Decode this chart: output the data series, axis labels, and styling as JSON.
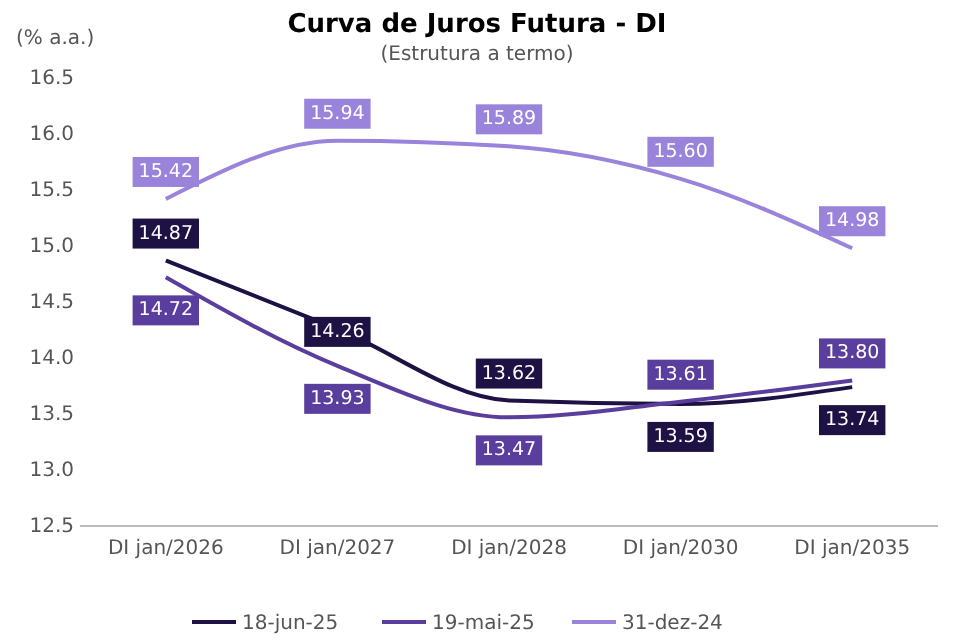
{
  "chart_data": {
    "type": "line",
    "title": "Curva de Juros Futura - DI",
    "subtitle": "(Estrutura a termo)",
    "ylabel": "(% a.a.)",
    "categories": [
      "DI jan/2026",
      "DI jan/2027",
      "DI jan/2028",
      "DI jan/2030",
      "DI jan/2035"
    ],
    "series": [
      {
        "name": "18-jun-25",
        "color": "#1e1245",
        "values": [
          14.87,
          14.26,
          13.62,
          13.59,
          13.74
        ],
        "value_labels": [
          "14.87",
          "14.26",
          "13.62",
          "13.59",
          "13.74"
        ]
      },
      {
        "name": "19-mai-25",
        "color": "#5a3e9e",
        "values": [
          14.72,
          13.93,
          13.47,
          13.61,
          13.8
        ],
        "value_labels": [
          "14.72",
          "13.93",
          "13.47",
          "13.61",
          "13.80"
        ]
      },
      {
        "name": "31-dez-24",
        "color": "#9a84db",
        "values": [
          15.42,
          15.94,
          15.89,
          15.6,
          14.98
        ],
        "value_labels": [
          "15.42",
          "15.94",
          "15.89",
          "15.60",
          "14.98"
        ]
      }
    ],
    "ylim": [
      12.5,
      16.5
    ],
    "yticks": [
      {
        "value": 12.5,
        "label": "12.5"
      },
      {
        "value": 13,
        "label": "13.0"
      },
      {
        "value": 13.5,
        "label": "13.5"
      },
      {
        "value": 14,
        "label": "14.0"
      },
      {
        "value": 14.5,
        "label": "14.5"
      },
      {
        "value": 15,
        "label": "15.0"
      },
      {
        "value": 15.5,
        "label": "15.5"
      },
      {
        "value": 16,
        "label": "16.0"
      },
      {
        "value": 16.5,
        "label": "16.5"
      }
    ],
    "grid": false,
    "legend": "bottom",
    "marker": "none",
    "line_style": "solid"
  }
}
